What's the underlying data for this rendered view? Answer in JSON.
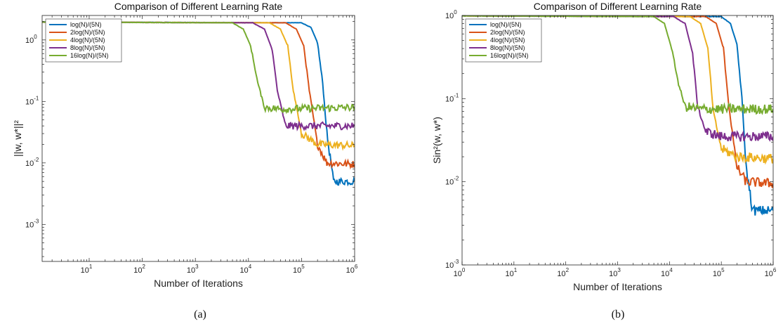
{
  "chart_data": [
    {
      "type": "line",
      "title": "Comparison of Different Learning Rate",
      "xlabel": "Number of Iterations",
      "ylabel": "||w, w*||²",
      "xscale": "log",
      "yscale": "log",
      "xlim": [
        1.3,
        1000000
      ],
      "ylim": [
        0.00025,
        2.5
      ],
      "xticks": [
        {
          "value": 10,
          "exp": "1"
        },
        {
          "value": 100,
          "exp": "2"
        },
        {
          "value": 1000,
          "exp": "3"
        },
        {
          "value": 10000,
          "exp": "4"
        },
        {
          "value": 100000,
          "exp": "5"
        },
        {
          "value": 1000000,
          "exp": "6"
        }
      ],
      "yticks": [
        {
          "value": 0.001,
          "exp": "-3"
        },
        {
          "value": 0.01,
          "exp": "-2"
        },
        {
          "value": 0.1,
          "exp": "-1"
        },
        {
          "value": 1,
          "exp": "0"
        }
      ],
      "grid": false,
      "legend_position": "top-left",
      "caption": "(a)",
      "series": [
        {
          "name": "log(N)/(5N)",
          "color": "#0072BD",
          "x": [
            1.3,
            100000,
            150000,
            200000,
            250000,
            300000,
            400000,
            1000000
          ],
          "y": [
            1.95,
            1.9,
            1.6,
            0.9,
            0.2,
            0.03,
            0.005,
            0.005
          ]
        },
        {
          "name": "2log(N)/(5N)",
          "color": "#D95319",
          "x": [
            1.3,
            50000,
            80000,
            110000,
            140000,
            200000,
            300000,
            1000000
          ],
          "y": [
            1.95,
            1.9,
            1.5,
            0.8,
            0.15,
            0.02,
            0.01,
            0.0095
          ]
        },
        {
          "name": "4log(N)/(5N)",
          "color": "#EDB120",
          "x": [
            1.3,
            25000,
            40000,
            55000,
            70000,
            100000,
            200000,
            1000000
          ],
          "y": [
            1.95,
            1.9,
            1.5,
            0.8,
            0.15,
            0.03,
            0.02,
            0.019
          ]
        },
        {
          "name": "8log(N)/(5N)",
          "color": "#7E2F8E",
          "x": [
            1.3,
            12000,
            20000,
            28000,
            35000,
            50000,
            100000,
            1000000
          ],
          "y": [
            1.95,
            1.9,
            1.5,
            0.7,
            0.15,
            0.04,
            0.04,
            0.04
          ]
        },
        {
          "name": "16log(N)/(5N)",
          "color": "#77AC30",
          "x": [
            1.3,
            5000,
            8000,
            11000,
            15000,
            20000,
            40000,
            1000000
          ],
          "y": [
            1.95,
            1.9,
            1.5,
            0.8,
            0.2,
            0.08,
            0.075,
            0.08
          ]
        }
      ]
    },
    {
      "type": "line",
      "title": "Comparison of Different Learning Rate",
      "xlabel": "Number of Iterations",
      "ylabel": "Sin²(w, w*)",
      "xscale": "log",
      "yscale": "log",
      "xlim": [
        1,
        1000000
      ],
      "ylim": [
        0.001,
        1
      ],
      "xticks": [
        {
          "value": 1,
          "exp": "0"
        },
        {
          "value": 10,
          "exp": "1"
        },
        {
          "value": 100,
          "exp": "2"
        },
        {
          "value": 1000,
          "exp": "3"
        },
        {
          "value": 10000,
          "exp": "4"
        },
        {
          "value": 100000,
          "exp": "5"
        },
        {
          "value": 1000000,
          "exp": "6"
        }
      ],
      "yticks": [
        {
          "value": 0.001,
          "exp": "-3"
        },
        {
          "value": 0.01,
          "exp": "-2"
        },
        {
          "value": 0.1,
          "exp": "-1"
        },
        {
          "value": 1,
          "exp": "0"
        }
      ],
      "grid": false,
      "legend_position": "top-left",
      "caption": "(b)",
      "series": [
        {
          "name": "log(N)/(5N)",
          "color": "#0072BD",
          "x": [
            1,
            100000,
            150000,
            200000,
            250000,
            300000,
            400000,
            1000000
          ],
          "y": [
            0.99,
            0.97,
            0.8,
            0.45,
            0.1,
            0.015,
            0.0045,
            0.0045
          ]
        },
        {
          "name": "2log(N)/(5N)",
          "color": "#D95319",
          "x": [
            1,
            50000,
            80000,
            110000,
            140000,
            200000,
            300000,
            1000000
          ],
          "y": [
            0.99,
            0.97,
            0.8,
            0.4,
            0.08,
            0.015,
            0.01,
            0.0095
          ]
        },
        {
          "name": "4log(N)/(5N)",
          "color": "#EDB120",
          "x": [
            1,
            25000,
            40000,
            55000,
            70000,
            100000,
            200000,
            1000000
          ],
          "y": [
            0.99,
            0.97,
            0.8,
            0.4,
            0.07,
            0.025,
            0.02,
            0.019
          ]
        },
        {
          "name": "8log(N)/(5N)",
          "color": "#7E2F8E",
          "x": [
            1,
            12000,
            20000,
            28000,
            35000,
            50000,
            100000,
            1000000
          ],
          "y": [
            0.99,
            0.97,
            0.8,
            0.35,
            0.08,
            0.04,
            0.035,
            0.035
          ]
        },
        {
          "name": "16log(N)/(5N)",
          "color": "#77AC30",
          "x": [
            1,
            5000,
            8000,
            11000,
            15000,
            20000,
            40000,
            1000000
          ],
          "y": [
            0.99,
            0.97,
            0.8,
            0.4,
            0.15,
            0.08,
            0.075,
            0.075
          ]
        }
      ]
    }
  ]
}
